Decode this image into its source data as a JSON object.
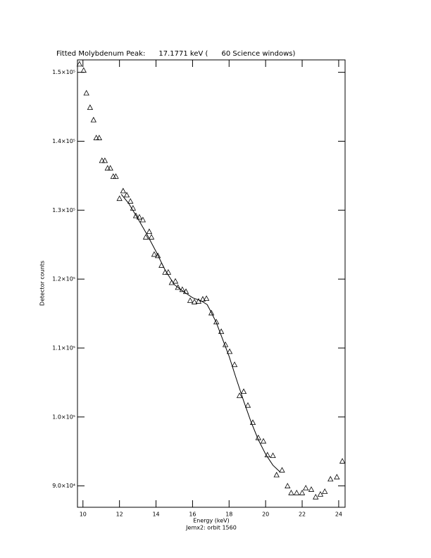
{
  "chart_data": {
    "type": "scatter",
    "title": "Fitted Molybdenum Peak:      17.1771 keV (      60 Science windows)",
    "x_label": "Energy (keV)",
    "y_label": "Detector counts",
    "subtitle": "Jemx2: orbit 1560",
    "xlim": [
      9.7,
      24.35
    ],
    "ylim": [
      86900,
      151800
    ],
    "xticks": [
      10,
      12,
      14,
      16,
      18,
      20,
      22,
      24
    ],
    "yticks": [
      {
        "value": 90000,
        "label": "9.0×10⁴"
      },
      {
        "value": 100000,
        "label": "1.0×10⁵"
      },
      {
        "value": 110000,
        "label": "1.1×10⁵"
      },
      {
        "value": 120000,
        "label": "1.2×10⁵"
      },
      {
        "value": 130000,
        "label": "1.3×10⁵"
      },
      {
        "value": 140000,
        "label": "1.4×10⁵"
      },
      {
        "value": 150000,
        "label": "1.5×10⁵"
      }
    ],
    "color": "#000000",
    "series": [
      {
        "style": "markers",
        "x": [
          9.81,
          10.04,
          10.19,
          10.39,
          10.58,
          10.73,
          10.89,
          11.04,
          11.2,
          11.35,
          11.5,
          11.66,
          11.8,
          12.0,
          12.2,
          12.4,
          12.6,
          12.74,
          12.9,
          13.09,
          13.28,
          13.44,
          13.63,
          13.75,
          13.9,
          14.1,
          14.3,
          14.5,
          14.67,
          14.86,
          15.06,
          15.2,
          15.44,
          15.64,
          15.87,
          16.1,
          16.33,
          16.56,
          16.76,
          17.03,
          17.3,
          17.57,
          17.8,
          18.03,
          18.3,
          18.57,
          18.8,
          19.03,
          19.3,
          19.6,
          19.88,
          20.1,
          20.4,
          20.6,
          20.9,
          21.2,
          21.4,
          21.7,
          22.0,
          22.2,
          22.5,
          22.74,
          23.0,
          23.24,
          23.55,
          23.9,
          24.2
        ],
        "values": [
          151200,
          150300,
          147000,
          144900,
          143100,
          140500,
          140500,
          137200,
          137200,
          136100,
          136100,
          134900,
          134900,
          131700,
          132800,
          132200,
          131300,
          130300,
          129200,
          129000,
          128600,
          126100,
          126900,
          126100,
          123600,
          123400,
          122000,
          121000,
          121000,
          119500,
          119700,
          118800,
          118500,
          118200,
          116900,
          116700,
          116800,
          117100,
          117200,
          115100,
          113800,
          112400,
          110500,
          109500,
          107600,
          103100,
          103700,
          101700,
          99200,
          97000,
          96500,
          94500,
          94400,
          91600,
          92300,
          90000,
          89000,
          89000,
          89000,
          89700,
          89500,
          88400,
          88800,
          89200,
          91000,
          91300,
          93600
        ]
      },
      {
        "style": "line",
        "x": [
          12.1,
          12.5,
          13.0,
          13.5,
          14.0,
          14.5,
          15.0,
          15.5,
          16.0,
          16.5,
          16.8,
          17.0,
          17.3,
          17.6,
          18.0,
          18.4,
          18.8,
          19.2,
          19.6,
          20.0,
          20.4,
          20.8
        ],
        "values": [
          132300,
          131000,
          128800,
          126500,
          124000,
          121300,
          119200,
          118200,
          117300,
          116800,
          116300,
          115300,
          113700,
          111600,
          108800,
          105500,
          102300,
          99300,
          96700,
          94600,
          93000,
          92000
        ]
      }
    ]
  }
}
